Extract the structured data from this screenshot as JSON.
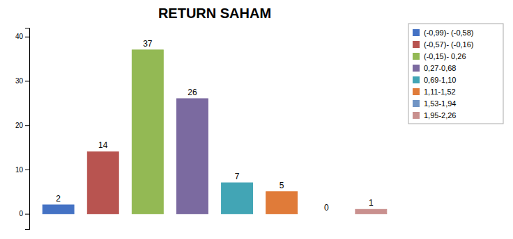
{
  "chart_data": {
    "type": "bar",
    "title": "RETURN SAHAM",
    "categories": [
      "(-0,99)- (-0,58)",
      "(-0,57)- (-0,16)",
      "(-0,15)- 0,26",
      "0,27-0,68",
      "0,69-1,10",
      "1,11-1,52",
      "1,53-1,94",
      "1,95-2,26"
    ],
    "values": [
      2,
      14,
      37,
      26,
      7,
      5,
      0,
      1
    ],
    "colors": [
      "#4472C4",
      "#B85450",
      "#93B954",
      "#7B6AA0",
      "#42A5B5",
      "#E07B39",
      "#7094C4",
      "#C9908E"
    ],
    "ylim": [
      -3.5,
      42
    ],
    "yticks": [
      0,
      10,
      20,
      30,
      40
    ],
    "grid": false,
    "legend": "right",
    "data_labels": true,
    "tick_labels": "y"
  }
}
